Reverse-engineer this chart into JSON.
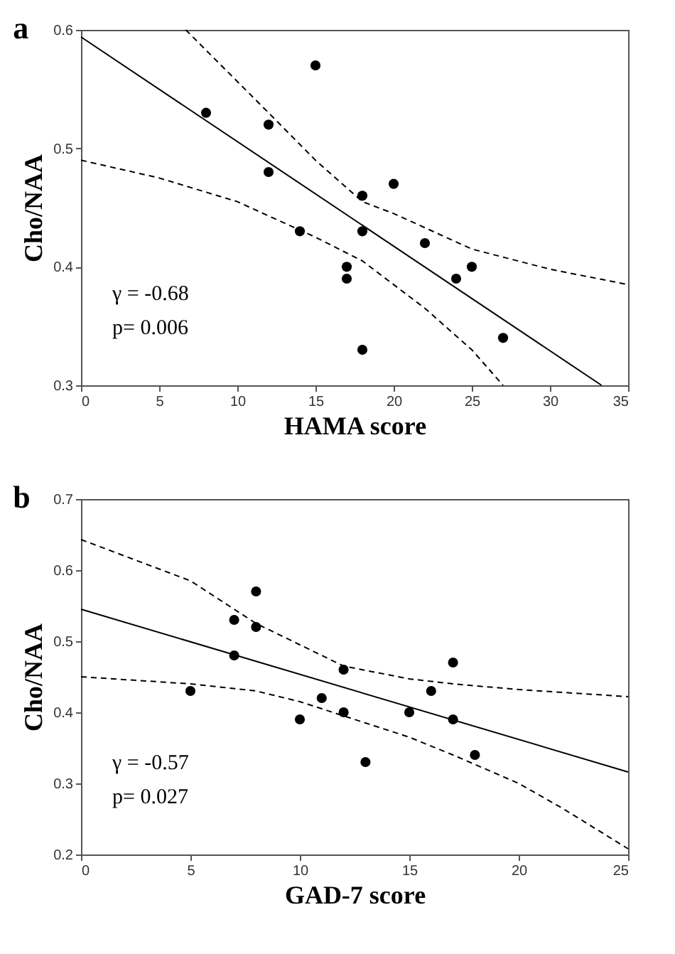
{
  "chart_data": [
    {
      "type": "scatter",
      "title": "a",
      "xlabel": "HAMA score",
      "ylabel": "Cho/NAA",
      "xlim": [
        0,
        35
      ],
      "ylim": [
        0.3,
        0.6
      ],
      "xticks": [
        0,
        5,
        10,
        15,
        20,
        25,
        30,
        35
      ],
      "yticks": [
        0.3,
        0.4,
        0.5,
        0.6
      ],
      "marker": "circle",
      "annotations": [
        "γ = -0.68",
        "p= 0.006"
      ],
      "series": [
        {
          "color": "#000000",
          "x": [
            8,
            12,
            12,
            14,
            15,
            17,
            17,
            18,
            18,
            18,
            20,
            22,
            24,
            25,
            27
          ],
          "values": [
            0.53,
            0.52,
            0.48,
            0.43,
            0.57,
            0.4,
            0.39,
            0.46,
            0.43,
            0.33,
            0.47,
            0.42,
            0.39,
            0.4,
            0.34
          ]
        },
        {
          "type": "line",
          "color": "#000000",
          "line_style": "solid",
          "marker": "none",
          "x": [
            0,
            33.3
          ],
          "values": [
            0.594,
            0.3
          ]
        },
        {
          "type": "line",
          "color": "#000000",
          "line_style": "dashed",
          "marker": "none",
          "x": [
            6.7,
            12,
            15,
            18,
            20,
            25,
            30,
            35
          ],
          "values": [
            0.6,
            0.53,
            0.49,
            0.455,
            0.445,
            0.415,
            0.398,
            0.385
          ]
        },
        {
          "type": "line",
          "color": "#000000",
          "line_style": "dashed",
          "marker": "none",
          "x": [
            0,
            5,
            10,
            15,
            18,
            20,
            22,
            25,
            27
          ],
          "values": [
            0.49,
            0.475,
            0.455,
            0.425,
            0.405,
            0.385,
            0.365,
            0.33,
            0.3
          ]
        }
      ]
    },
    {
      "type": "scatter",
      "title": "b",
      "xlabel": "GAD-7 score",
      "ylabel": "Cho/NAA",
      "xlim": [
        0,
        25
      ],
      "ylim": [
        0.2,
        0.7
      ],
      "xticks": [
        0,
        5,
        10,
        15,
        20,
        25
      ],
      "yticks": [
        0.2,
        0.3,
        0.4,
        0.5,
        0.6,
        0.7
      ],
      "marker": "circle",
      "annotations": [
        "γ = -0.57",
        "p= 0.027"
      ],
      "series": [
        {
          "color": "#000000",
          "x": [
            5,
            7,
            7,
            8,
            8,
            10,
            11,
            12,
            12,
            13,
            15,
            16,
            17,
            17,
            18
          ],
          "values": [
            0.43,
            0.53,
            0.48,
            0.57,
            0.52,
            0.39,
            0.42,
            0.46,
            0.4,
            0.33,
            0.4,
            0.43,
            0.47,
            0.39,
            0.34
          ]
        },
        {
          "type": "line",
          "color": "#000000",
          "line_style": "solid",
          "marker": "none",
          "x": [
            0,
            25
          ],
          "values": [
            0.545,
            0.316
          ]
        },
        {
          "type": "line",
          "color": "#000000",
          "line_style": "dashed",
          "marker": "none",
          "x": [
            0,
            5,
            8,
            10,
            12,
            15,
            17,
            20,
            25
          ],
          "values": [
            0.643,
            0.585,
            0.525,
            0.495,
            0.465,
            0.447,
            0.44,
            0.432,
            0.422
          ]
        },
        {
          "type": "line",
          "color": "#000000",
          "line_style": "dashed",
          "marker": "none",
          "x": [
            0,
            5,
            8,
            10,
            12,
            15,
            17,
            20,
            22,
            25
          ],
          "values": [
            0.45,
            0.44,
            0.43,
            0.415,
            0.395,
            0.365,
            0.34,
            0.3,
            0.265,
            0.208
          ]
        }
      ]
    }
  ]
}
